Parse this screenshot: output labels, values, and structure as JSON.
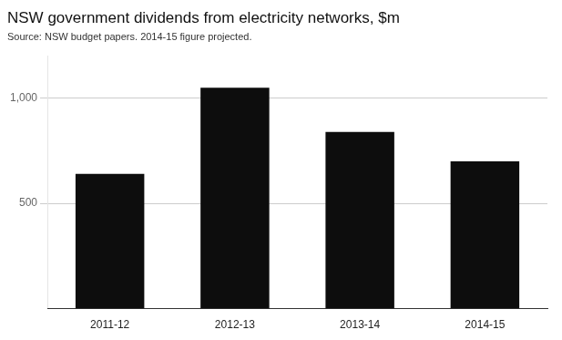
{
  "chart_data": {
    "type": "bar",
    "title": "NSW government dividends from electricity networks, $m",
    "subtitle": "Source: NSW budget papers. 2014-15 figure projected.",
    "categories": [
      "2011-12",
      "2012-13",
      "2013-14",
      "2014-15"
    ],
    "values": [
      640,
      1050,
      840,
      700
    ],
    "color": "#0d0d0d",
    "ylim": [
      0,
      1200
    ],
    "yticks": [
      500,
      {
        "value": 1000,
        "label": "1,000"
      }
    ],
    "grid": true
  }
}
